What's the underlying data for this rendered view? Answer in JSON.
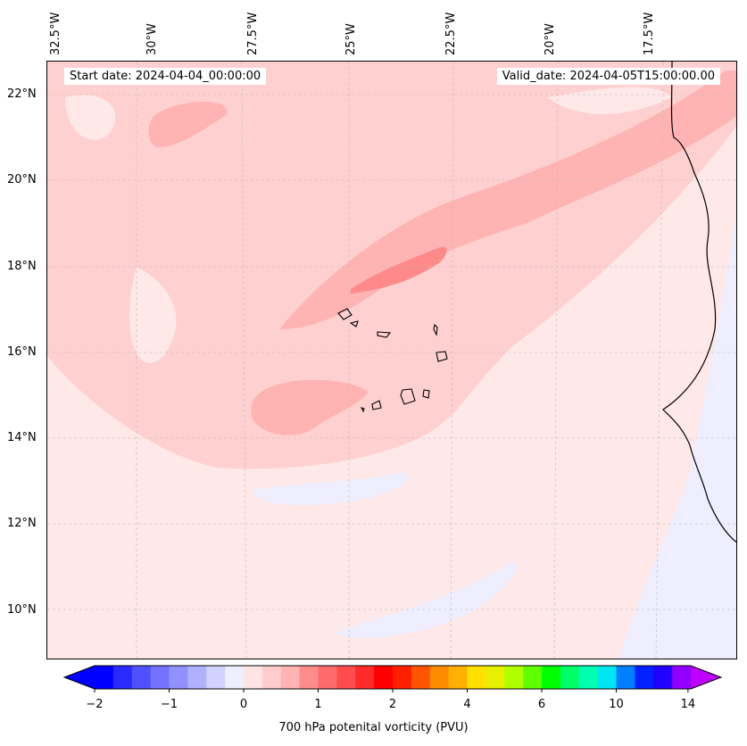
{
  "map": {
    "start_date": "Start date: 2024-04-04_00:00:00",
    "valid_date": "Valid_date: 2024-04-05T15:00:00.00",
    "lon_labels": [
      "32.5°W",
      "30°W",
      "27.5°W",
      "25°W",
      "22.5°W",
      "20°W",
      "17.5°W"
    ],
    "lat_labels": [
      "22°N",
      "20°N",
      "18°N",
      "16°N",
      "14°N",
      "12°N",
      "10°N"
    ],
    "colors": {
      "background": "#ffe8e8",
      "light": "#ffd0d0",
      "mid": "#ffb3b3",
      "strong": "#ff8a8a",
      "negative": "#eeeeff",
      "coast": "#000000"
    }
  },
  "colorbar": {
    "label": "700 hPa potenital vorticity (PVU)",
    "tick_labels": [
      "−2",
      "−1",
      "0",
      "1",
      "2",
      "4",
      "6",
      "10",
      "14"
    ],
    "colors": [
      "#0000ff",
      "#2a2aff",
      "#5050ff",
      "#7373ff",
      "#9090ff",
      "#b0b0ff",
      "#d2d2ff",
      "#eeeeff",
      "#ffe4e4",
      "#ffcccc",
      "#ffb3b3",
      "#ff8c8c",
      "#ff6a6a",
      "#ff4d4d",
      "#ff2a2a",
      "#ff0000",
      "#ff2000",
      "#ff5500",
      "#ff8c00",
      "#ffb000",
      "#ffe000",
      "#e6f000",
      "#b0ff00",
      "#60ff00",
      "#00ff00",
      "#00ff66",
      "#00ffb0",
      "#00e6f0",
      "#0080ff",
      "#0020ff",
      "#2000ff",
      "#9000ff"
    ],
    "low_extend_color": "#0000ff",
    "high_extend_color": "#c000ff"
  }
}
